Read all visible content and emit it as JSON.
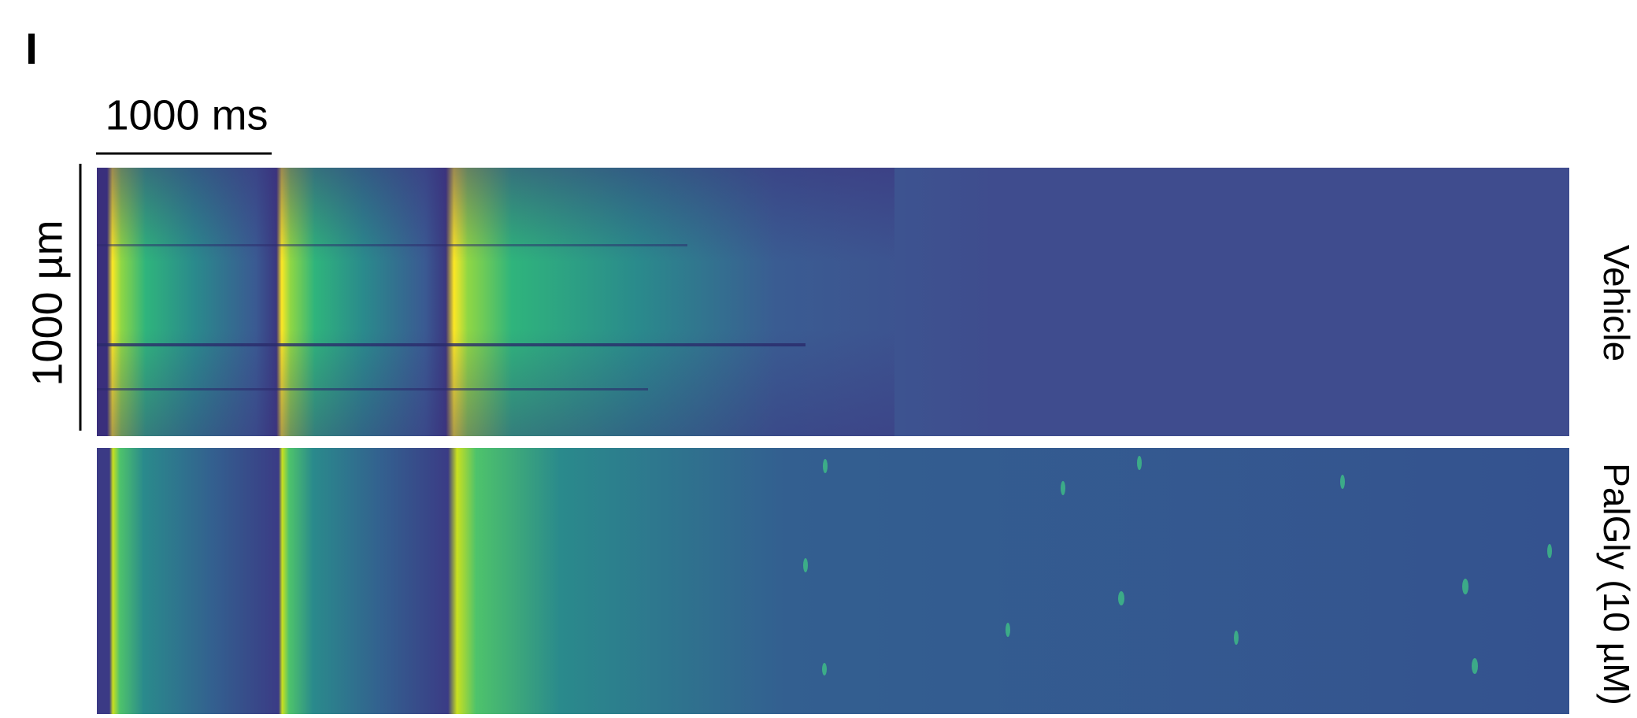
{
  "panel_label": "I",
  "scale_bars": {
    "time": "1000 ms",
    "space": "1000 µm"
  },
  "conditions": [
    "Vehicle",
    "PalGly (10 µM)"
  ]
}
